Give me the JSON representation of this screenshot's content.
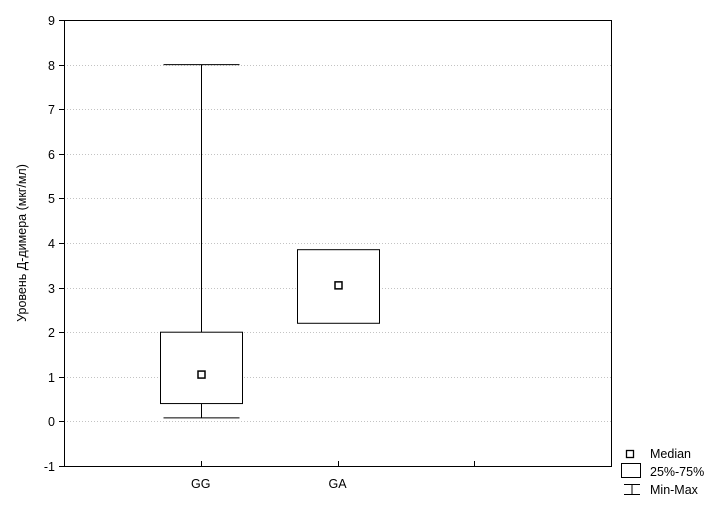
{
  "chart_data": {
    "type": "boxplot",
    "title": "",
    "xlabel": "",
    "ylabel": "Уровень Д-димера (мкг/мл)",
    "ylim": [
      -1,
      9
    ],
    "yticks": [
      -1,
      0,
      1,
      2,
      3,
      4,
      5,
      6,
      7,
      8,
      9
    ],
    "grid": "horizontal-dotted",
    "categories": [
      "GG",
      "GA"
    ],
    "boxes": [
      {
        "category": "GG",
        "median": 1.05,
        "q1": 0.4,
        "q3": 2.0,
        "min": 0.08,
        "max": 8.0
      },
      {
        "category": "GA",
        "median": 3.05,
        "q1": 2.2,
        "q3": 3.85,
        "min": 2.2,
        "max": 3.85
      }
    ],
    "legend": {
      "placement": "bottom-right",
      "entries": [
        {
          "symbol": "median-square",
          "label": "Median"
        },
        {
          "symbol": "box",
          "label": "25%-75%"
        },
        {
          "symbol": "whisker",
          "label": "Min-Max"
        }
      ]
    },
    "colors": {
      "axis": "#000000",
      "grid": "#b0b0b0",
      "box_fill": "#ffffff"
    }
  }
}
